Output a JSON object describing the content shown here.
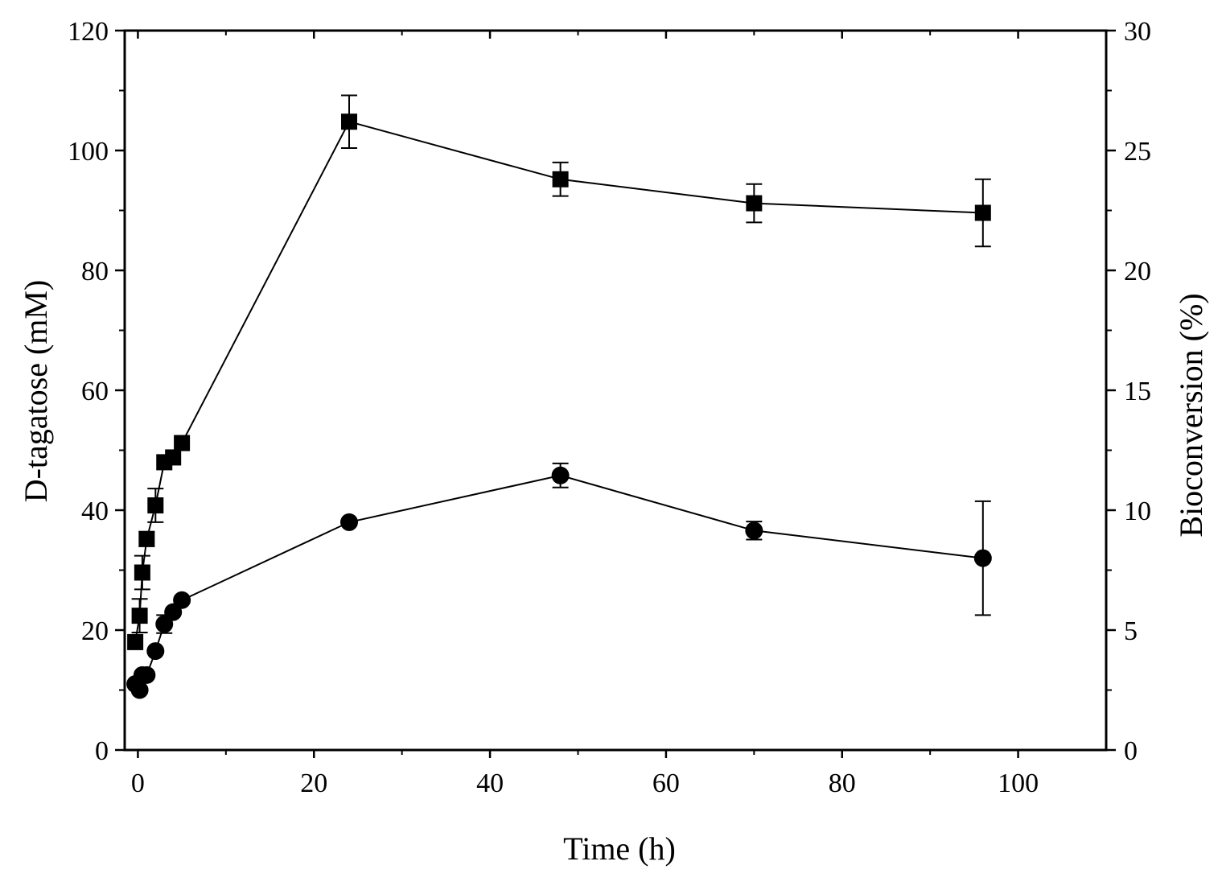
{
  "chart_data": {
    "type": "scatter",
    "xlabel": "Time (h)",
    "ylabel": "D-tagatose (mM)",
    "y2label": "Bioconversion (%)",
    "xlim": [
      -1.5,
      110
    ],
    "ylim": [
      0,
      120
    ],
    "y2lim": [
      0,
      30
    ],
    "xticks": [
      "0",
      "20",
      "40",
      "60",
      "80",
      "100"
    ],
    "yticks": [
      "0",
      "20",
      "40",
      "60",
      "80",
      "100",
      "120"
    ],
    "y2ticks": [
      "0",
      "5",
      "10",
      "15",
      "20",
      "25",
      "30"
    ],
    "grid": false,
    "series": [
      {
        "name": "Bioconversion (%)",
        "axis": "right",
        "marker": "square",
        "x": [
          -0.3,
          0.2,
          0.5,
          1,
          2,
          3,
          4,
          5,
          24,
          48,
          70,
          96
        ],
        "y": [
          4.5,
          5.6,
          7.4,
          8.8,
          10.2,
          12.0,
          12.2,
          12.8,
          26.2,
          23.8,
          22.8,
          22.4
        ],
        "err": [
          0,
          0.7,
          0.7,
          0.3,
          0.7,
          0,
          0,
          0,
          1.1,
          0.7,
          0.8,
          1.4
        ]
      },
      {
        "name": "D-tagatose (mM)",
        "axis": "left",
        "marker": "circle",
        "x": [
          -0.3,
          0.2,
          0.5,
          1,
          2,
          3,
          4,
          5,
          24,
          48,
          70,
          96
        ],
        "y": [
          11,
          10,
          12.5,
          12.5,
          16.5,
          21,
          23,
          25,
          38,
          45.8,
          36.6,
          32
        ],
        "err": [
          0,
          0,
          0,
          0,
          0,
          1.5,
          0,
          0,
          0,
          2,
          1.5,
          9.5
        ]
      }
    ]
  }
}
